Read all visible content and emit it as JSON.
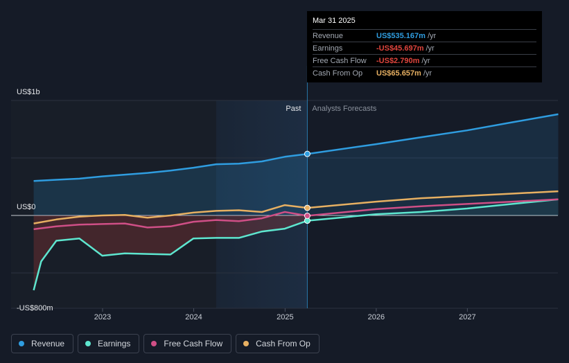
{
  "chart_data": {
    "type": "area",
    "y_unit": "US$m",
    "ylim": [
      -800,
      1000
    ],
    "y_tick_labels": [
      {
        "value": 1000,
        "label": "US$1b"
      },
      {
        "value": 0,
        "label": "US$0"
      },
      {
        "value": -800,
        "label": "-US$800m"
      }
    ],
    "xlim": [
      "2022-03-31",
      "2027-12-31"
    ],
    "x_ticks": [
      "2023",
      "2024",
      "2025",
      "2026",
      "2027"
    ],
    "divider_date": "2025-03-31",
    "past_label": "Past",
    "forecast_label": "Analysts Forecasts",
    "series": [
      {
        "name": "Revenue",
        "color": "#2f9de0",
        "fill": true,
        "points": [
          [
            "2022-03-31",
            300
          ],
          [
            "2022-06-30",
            310
          ],
          [
            "2022-09-30",
            320
          ],
          [
            "2022-12-31",
            340
          ],
          [
            "2023-03-31",
            355
          ],
          [
            "2023-06-30",
            370
          ],
          [
            "2023-09-30",
            390
          ],
          [
            "2023-12-31",
            415
          ],
          [
            "2024-03-31",
            445
          ],
          [
            "2024-06-30",
            450
          ],
          [
            "2024-09-30",
            470
          ],
          [
            "2024-12-31",
            510
          ],
          [
            "2025-03-31",
            535.167
          ],
          [
            "2025-12-31",
            620
          ],
          [
            "2026-06-30",
            680
          ],
          [
            "2026-12-31",
            740
          ],
          [
            "2027-06-30",
            810
          ],
          [
            "2027-12-31",
            880
          ]
        ]
      },
      {
        "name": "Earnings",
        "color": "#5ee6cf",
        "fill": true,
        "points": [
          [
            "2022-03-31",
            -650
          ],
          [
            "2022-04-30",
            -400
          ],
          [
            "2022-06-30",
            -220
          ],
          [
            "2022-09-30",
            -200
          ],
          [
            "2022-12-31",
            -350
          ],
          [
            "2023-03-31",
            -330
          ],
          [
            "2023-06-30",
            -335
          ],
          [
            "2023-09-30",
            -340
          ],
          [
            "2023-12-31",
            -200
          ],
          [
            "2024-03-31",
            -195
          ],
          [
            "2024-06-30",
            -195
          ],
          [
            "2024-09-30",
            -140
          ],
          [
            "2024-12-31",
            -115
          ],
          [
            "2025-03-31",
            -45.697
          ],
          [
            "2025-12-31",
            10
          ],
          [
            "2026-06-30",
            30
          ],
          [
            "2026-12-31",
            60
          ],
          [
            "2027-06-30",
            100
          ],
          [
            "2027-12-31",
            140
          ]
        ]
      },
      {
        "name": "Free Cash Flow",
        "color": "#cf4f86",
        "fill": false,
        "points": [
          [
            "2022-03-31",
            -120
          ],
          [
            "2022-06-30",
            -95
          ],
          [
            "2022-09-30",
            -80
          ],
          [
            "2022-12-31",
            -75
          ],
          [
            "2023-03-31",
            -70
          ],
          [
            "2023-06-30",
            -105
          ],
          [
            "2023-09-30",
            -95
          ],
          [
            "2023-12-31",
            -55
          ],
          [
            "2024-03-31",
            -40
          ],
          [
            "2024-06-30",
            -50
          ],
          [
            "2024-09-30",
            -25
          ],
          [
            "2024-12-31",
            30
          ],
          [
            "2025-03-31",
            -2.79
          ],
          [
            "2025-12-31",
            55
          ],
          [
            "2026-06-30",
            80
          ],
          [
            "2026-12-31",
            100
          ],
          [
            "2027-06-30",
            120
          ],
          [
            "2027-12-31",
            140
          ]
        ]
      },
      {
        "name": "Cash From Op",
        "color": "#e7b062",
        "fill": false,
        "points": [
          [
            "2022-03-31",
            -70
          ],
          [
            "2022-06-30",
            -35
          ],
          [
            "2022-09-30",
            -10
          ],
          [
            "2022-12-31",
            0
          ],
          [
            "2023-03-31",
            5
          ],
          [
            "2023-06-30",
            -20
          ],
          [
            "2023-09-30",
            0
          ],
          [
            "2023-12-31",
            25
          ],
          [
            "2024-03-31",
            40
          ],
          [
            "2024-06-30",
            45
          ],
          [
            "2024-09-30",
            30
          ],
          [
            "2024-12-31",
            90
          ],
          [
            "2025-03-31",
            65.657
          ],
          [
            "2025-12-31",
            120
          ],
          [
            "2026-06-30",
            150
          ],
          [
            "2026-12-31",
            170
          ],
          [
            "2027-06-30",
            190
          ],
          [
            "2027-12-31",
            210
          ]
        ]
      }
    ]
  },
  "tooltip": {
    "date": "Mar 31 2025",
    "rows": [
      {
        "label": "Revenue",
        "value": "US$535.167m",
        "unit": "/yr",
        "color": "#2f9de0"
      },
      {
        "label": "Earnings",
        "value": "-US$45.697m",
        "unit": "/yr",
        "color": "#e0453d"
      },
      {
        "label": "Free Cash Flow",
        "value": "-US$2.790m",
        "unit": "/yr",
        "color": "#e0453d"
      },
      {
        "label": "Cash From Op",
        "value": "US$65.657m",
        "unit": "/yr",
        "color": "#e7b062"
      }
    ]
  },
  "legend": [
    {
      "label": "Revenue",
      "color": "#2f9de0"
    },
    {
      "label": "Earnings",
      "color": "#5ee6cf"
    },
    {
      "label": "Free Cash Flow",
      "color": "#cf4f86"
    },
    {
      "label": "Cash From Op",
      "color": "#e7b062"
    }
  ]
}
